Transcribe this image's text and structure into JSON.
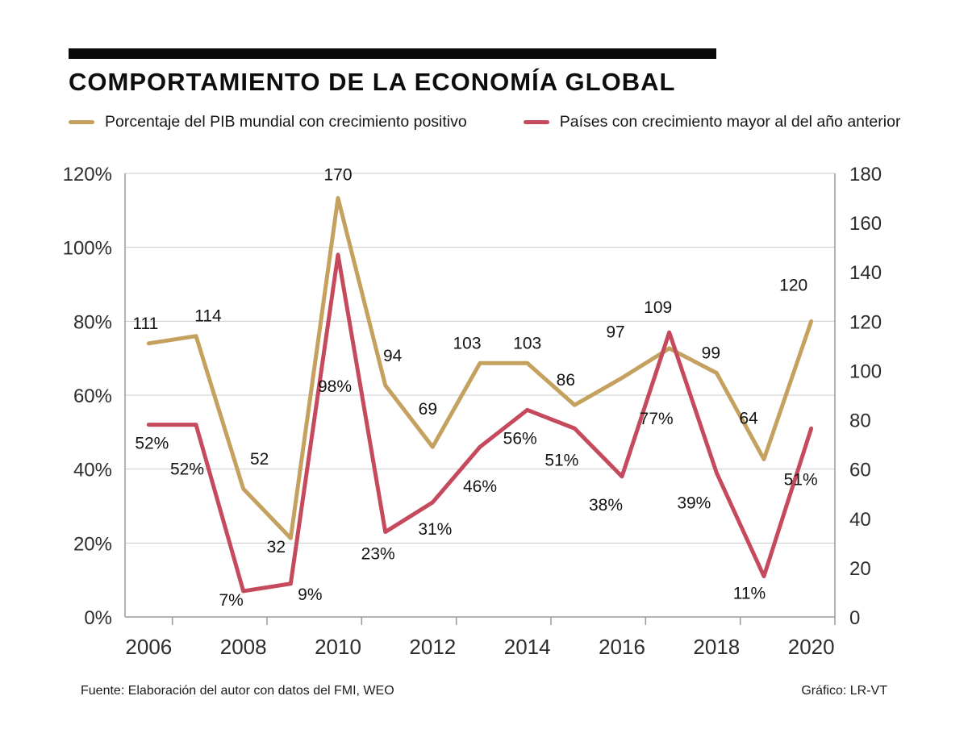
{
  "header": {
    "title": "COMPORTAMIENTO DE LA ECONOMÍA GLOBAL"
  },
  "legend": {
    "items": [
      {
        "label": "Porcentaje del PIB mundial con crecimiento positivo",
        "color": "#C4A15E"
      },
      {
        "label": "Países con crecimiento mayor al del año anterior",
        "color": "#C64A5E"
      }
    ]
  },
  "footer": {
    "source": "Fuente: Elaboración del autor con datos del FMI, WEO",
    "credit": "Gráfico: LR-VT"
  },
  "chart_data": {
    "type": "line",
    "title": "COMPORTAMIENTO DE LA ECONOMÍA GLOBAL",
    "grid": true,
    "legend_position": "top",
    "x": [
      2006,
      2007,
      2008,
      2009,
      2010,
      2011,
      2012,
      2013,
      2014,
      2015,
      2016,
      2017,
      2018,
      2019,
      2020
    ],
    "x_tick_indices": [
      0,
      2,
      4,
      6,
      8,
      10,
      12,
      14
    ],
    "left_axis": {
      "min": 0,
      "max": 120,
      "values": [
        0,
        20,
        40,
        60,
        80,
        100,
        120
      ],
      "labels": [
        "0%",
        "20%",
        "40%",
        "60%",
        "80%",
        "100%",
        "120%"
      ]
    },
    "right_axis": {
      "min": 0,
      "max": 180,
      "values": [
        0,
        20,
        40,
        60,
        80,
        100,
        120,
        140,
        160,
        180
      ],
      "labels": [
        "0",
        "20",
        "40",
        "60",
        "80",
        "100",
        "120",
        "140",
        "160",
        "180"
      ]
    },
    "series": [
      {
        "name": "Porcentaje del PIB mundial con crecimiento positivo",
        "color": "#C4A15E",
        "axis": "right",
        "values": [
          111,
          114,
          52,
          32,
          170,
          94,
          69,
          103,
          103,
          86,
          97,
          109,
          99,
          64,
          120
        ],
        "point_labels": [
          "111",
          "114",
          "52",
          "32",
          "170",
          "94",
          "69",
          "103",
          "103",
          "86",
          "97",
          "109",
          "99",
          "64",
          "120"
        ],
        "label_offsets": [
          [
            -4,
            -18
          ],
          [
            15,
            -18
          ],
          [
            20,
            -30
          ],
          [
            -18,
            18
          ],
          [
            0,
            -22
          ],
          [
            9,
            -30
          ],
          [
            -6,
            -40
          ],
          [
            -16,
            -18
          ],
          [
            0,
            -18
          ],
          [
            -11,
            -24
          ],
          [
            -8,
            -50
          ],
          [
            -14,
            -44
          ],
          [
            -7,
            -18
          ],
          [
            -19,
            -44
          ],
          [
            -22,
            -38
          ]
        ]
      },
      {
        "name": "Países con crecimiento mayor al del año anterior",
        "color": "#C64A5E",
        "axis": "left",
        "values": [
          52,
          52,
          7,
          9,
          98,
          23,
          31,
          46,
          56,
          51,
          38,
          77,
          39,
          11,
          51
        ],
        "point_labels": [
          "52%",
          "52%",
          "7%",
          "9%",
          "98%",
          "23%",
          "31%",
          "46%",
          "56%",
          "51%",
          "38%",
          "77%",
          "39%",
          "11%",
          "51%"
        ],
        "label_offsets": [
          [
            4,
            30
          ],
          [
            -11,
            62
          ],
          [
            -15,
            18
          ],
          [
            24,
            20
          ],
          [
            -4,
            170
          ],
          [
            -9,
            34
          ],
          [
            3,
            40
          ],
          [
            0,
            56
          ],
          [
            -9,
            42
          ],
          [
            -16,
            46
          ],
          [
            -20,
            42
          ],
          [
            -16,
            114
          ],
          [
            -28,
            44
          ],
          [
            -18,
            28
          ],
          [
            -13,
            70
          ]
        ]
      }
    ]
  }
}
